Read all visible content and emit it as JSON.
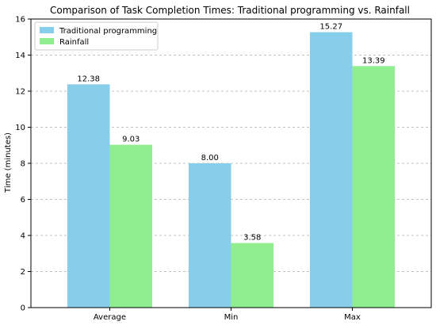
{
  "chart_data": {
    "type": "bar",
    "title": "Comparison of Task Completion Times: Traditional programming vs. Rainfall",
    "xlabel": "",
    "ylabel": "Time (minutes)",
    "categories": [
      "Average",
      "Min",
      "Max"
    ],
    "series": [
      {
        "name": "Traditional programming",
        "values": [
          12.38,
          8.0,
          15.27
        ],
        "labels": [
          "12.38",
          "8.00",
          "15.27"
        ],
        "color": "#87CEEB"
      },
      {
        "name": "Rainfall",
        "values": [
          9.03,
          3.58,
          13.39
        ],
        "labels": [
          "9.03",
          "3.58",
          "13.39"
        ],
        "color": "#90EE90"
      }
    ],
    "ylim": [
      0,
      16
    ],
    "yticks": [
      "0",
      "2",
      "4",
      "6",
      "8",
      "10",
      "12",
      "14",
      "16"
    ],
    "grid": "y-dashed",
    "legend_position": "top-left"
  }
}
